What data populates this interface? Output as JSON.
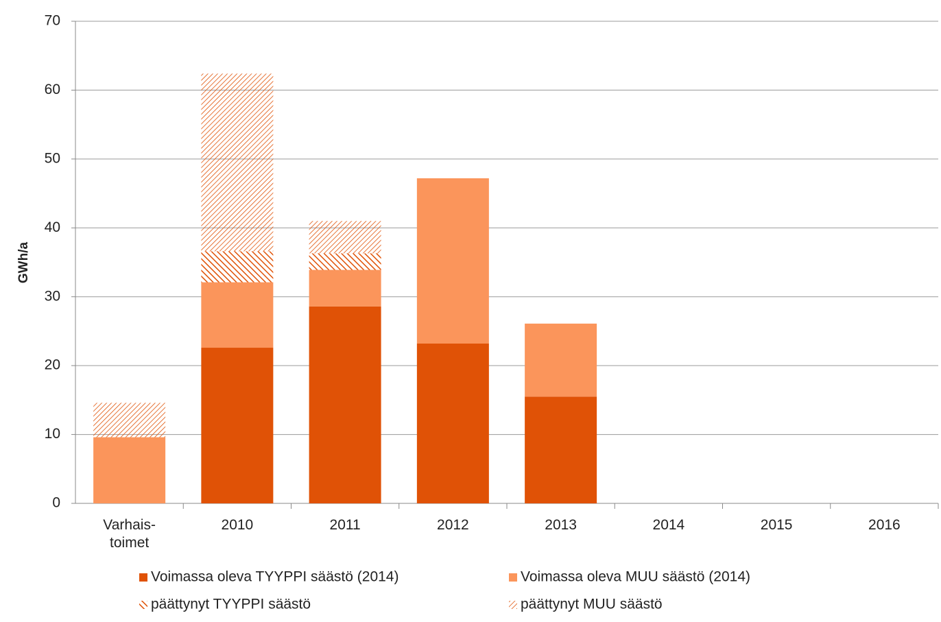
{
  "chart_data": {
    "type": "stacked_bar",
    "y_label": "GWh/a",
    "categories": [
      "Varhais-\ntoimet",
      "2010",
      "2011",
      "2012",
      "2013",
      "2014",
      "2015",
      "2016"
    ],
    "series": [
      {
        "name": "Voimassa oleva TYYPPI säästö (2014)",
        "color": "#e05206",
        "hatch": "none",
        "values": [
          0,
          22.6,
          28.6,
          23.2,
          15.5,
          0,
          0,
          0
        ]
      },
      {
        "name": "Voimassa oleva MUU säästö (2014)",
        "color": "#fb955b",
        "hatch": "none",
        "values": [
          9.6,
          9.5,
          5.3,
          24.0,
          10.6,
          0,
          0,
          0
        ]
      },
      {
        "name": "päättynyt TYYPPI säästö",
        "color": "#e05206",
        "hatch": "dense",
        "values": [
          0,
          4.5,
          2.4,
          0,
          0,
          0,
          0,
          0
        ]
      },
      {
        "name": "päättynyt MUU säästö",
        "color": "#e05206",
        "hatch": "sparse",
        "values": [
          5.0,
          25.8,
          4.7,
          0,
          0,
          0,
          0,
          0
        ]
      }
    ],
    "ylim": [
      0,
      70
    ],
    "yticks": [
      0,
      10,
      20,
      30,
      40,
      50,
      60,
      70
    ],
    "grid": true
  }
}
